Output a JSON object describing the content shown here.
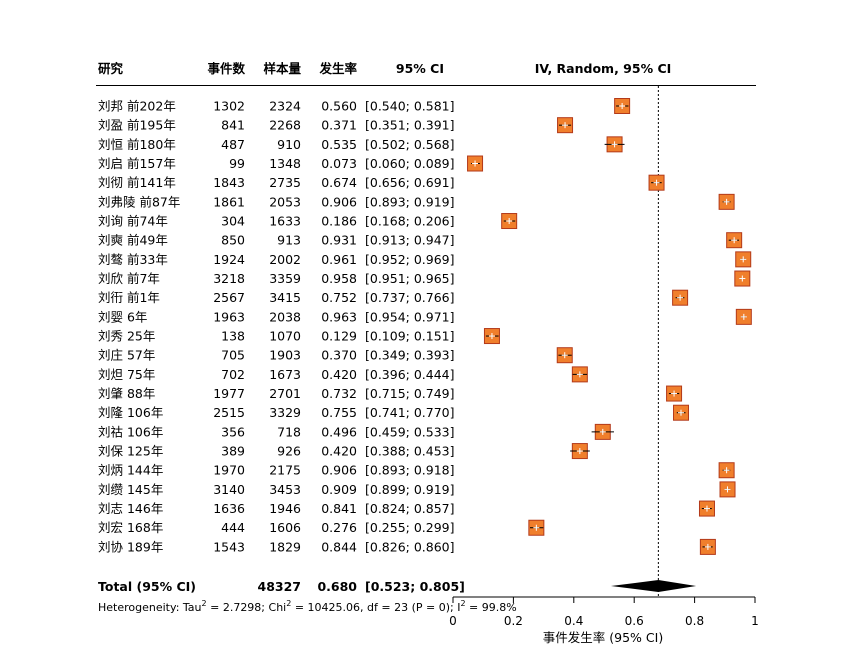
{
  "headers": {
    "study": "研究",
    "events": "事件数",
    "total": "样本量",
    "rate": "发生率",
    "ci": "95% CI",
    "plot": "IV, Random, 95% CI"
  },
  "chart_data": {
    "type": "forest",
    "xlim": [
      0,
      1
    ],
    "ticks": [
      "0",
      "0.2",
      "0.4",
      "0.6",
      "0.8",
      "1"
    ],
    "tick_values": [
      0,
      0.2,
      0.4,
      0.6,
      0.8,
      1
    ],
    "reference_line": 0.68,
    "xlabel": "事件发生率 (95% CI)",
    "studies": [
      {
        "study": "刘邦 前202年",
        "events": "1302",
        "total": "2324",
        "rate": "0.560",
        "ci": "[0.540; 0.581]",
        "est": 0.56,
        "lo": 0.54,
        "hi": 0.581
      },
      {
        "study": "刘盈 前195年",
        "events": "841",
        "total": "2268",
        "rate": "0.371",
        "ci": "[0.351; 0.391]",
        "est": 0.371,
        "lo": 0.351,
        "hi": 0.391
      },
      {
        "study": "刘恒 前180年",
        "events": "487",
        "total": "910",
        "rate": "0.535",
        "ci": "[0.502; 0.568]",
        "est": 0.535,
        "lo": 0.502,
        "hi": 0.568
      },
      {
        "study": "刘启 前157年",
        "events": "99",
        "total": "1348",
        "rate": "0.073",
        "ci": "[0.060; 0.089]",
        "est": 0.073,
        "lo": 0.06,
        "hi": 0.089
      },
      {
        "study": "刘彻 前141年",
        "events": "1843",
        "total": "2735",
        "rate": "0.674",
        "ci": "[0.656; 0.691]",
        "est": 0.674,
        "lo": 0.656,
        "hi": 0.691
      },
      {
        "study": "刘弗陵 前87年",
        "events": "1861",
        "total": "2053",
        "rate": "0.906",
        "ci": "[0.893; 0.919]",
        "est": 0.906,
        "lo": 0.893,
        "hi": 0.919
      },
      {
        "study": "刘询 前74年",
        "events": "304",
        "total": "1633",
        "rate": "0.186",
        "ci": "[0.168; 0.206]",
        "est": 0.186,
        "lo": 0.168,
        "hi": 0.206
      },
      {
        "study": "刘奭 前49年",
        "events": "850",
        "total": "913",
        "rate": "0.931",
        "ci": "[0.913; 0.947]",
        "est": 0.931,
        "lo": 0.913,
        "hi": 0.947
      },
      {
        "study": "刘骜 前33年",
        "events": "1924",
        "total": "2002",
        "rate": "0.961",
        "ci": "[0.952; 0.969]",
        "est": 0.961,
        "lo": 0.952,
        "hi": 0.969
      },
      {
        "study": "刘欣 前7年",
        "events": "3218",
        "total": "3359",
        "rate": "0.958",
        "ci": "[0.951; 0.965]",
        "est": 0.958,
        "lo": 0.951,
        "hi": 0.965
      },
      {
        "study": "刘衎 前1年",
        "events": "2567",
        "total": "3415",
        "rate": "0.752",
        "ci": "[0.737; 0.766]",
        "est": 0.752,
        "lo": 0.737,
        "hi": 0.766
      },
      {
        "study": "刘婴 6年",
        "events": "1963",
        "total": "2038",
        "rate": "0.963",
        "ci": "[0.954; 0.971]",
        "est": 0.963,
        "lo": 0.954,
        "hi": 0.971
      },
      {
        "study": "刘秀 25年",
        "events": "138",
        "total": "1070",
        "rate": "0.129",
        "ci": "[0.109; 0.151]",
        "est": 0.129,
        "lo": 0.109,
        "hi": 0.151
      },
      {
        "study": "刘庄 57年",
        "events": "705",
        "total": "1903",
        "rate": "0.370",
        "ci": "[0.349; 0.393]",
        "est": 0.37,
        "lo": 0.349,
        "hi": 0.393
      },
      {
        "study": "刘炟 75年",
        "events": "702",
        "total": "1673",
        "rate": "0.420",
        "ci": "[0.396; 0.444]",
        "est": 0.42,
        "lo": 0.396,
        "hi": 0.444
      },
      {
        "study": "刘肇 88年",
        "events": "1977",
        "total": "2701",
        "rate": "0.732",
        "ci": "[0.715; 0.749]",
        "est": 0.732,
        "lo": 0.715,
        "hi": 0.749
      },
      {
        "study": "刘隆 106年",
        "events": "2515",
        "total": "3329",
        "rate": "0.755",
        "ci": "[0.741; 0.770]",
        "est": 0.755,
        "lo": 0.741,
        "hi": 0.77
      },
      {
        "study": "刘祜 106年",
        "events": "356",
        "total": "718",
        "rate": "0.496",
        "ci": "[0.459; 0.533]",
        "est": 0.496,
        "lo": 0.459,
        "hi": 0.533
      },
      {
        "study": "刘保 125年",
        "events": "389",
        "total": "926",
        "rate": "0.420",
        "ci": "[0.388; 0.453]",
        "est": 0.42,
        "lo": 0.388,
        "hi": 0.453
      },
      {
        "study": "刘炳 144年",
        "events": "1970",
        "total": "2175",
        "rate": "0.906",
        "ci": "[0.893; 0.918]",
        "est": 0.906,
        "lo": 0.893,
        "hi": 0.918
      },
      {
        "study": "刘缵 145年",
        "events": "3140",
        "total": "3453",
        "rate": "0.909",
        "ci": "[0.899; 0.919]",
        "est": 0.909,
        "lo": 0.899,
        "hi": 0.919
      },
      {
        "study": "刘志 146年",
        "events": "1636",
        "total": "1946",
        "rate": "0.841",
        "ci": "[0.824; 0.857]",
        "est": 0.841,
        "lo": 0.824,
        "hi": 0.857
      },
      {
        "study": "刘宏 168年",
        "events": "444",
        "total": "1606",
        "rate": "0.276",
        "ci": "[0.255; 0.299]",
        "est": 0.276,
        "lo": 0.255,
        "hi": 0.299
      },
      {
        "study": "刘协 189年",
        "events": "1543",
        "total": "1829",
        "rate": "0.844",
        "ci": "[0.826; 0.860]",
        "est": 0.844,
        "lo": 0.826,
        "hi": 0.86
      }
    ],
    "total": {
      "label": "Total (95% CI)",
      "total": "48327",
      "rate": "0.680",
      "ci": "[0.523; 0.805]",
      "est": 0.68,
      "lo": 0.523,
      "hi": 0.805
    },
    "heterogeneity": {
      "prefix": "Heterogeneity: Tau",
      "tau2": " = 2.7298; Chi",
      "chi2": " = 10425.06, df = 23 (P = 0); I",
      "i2": " = 99.8%",
      "sup": "2"
    },
    "colors": {
      "box_fill": "#F07F2C",
      "box_stroke": "#B33A1A",
      "ci_line": "#000000",
      "diamond": "#000000"
    }
  }
}
